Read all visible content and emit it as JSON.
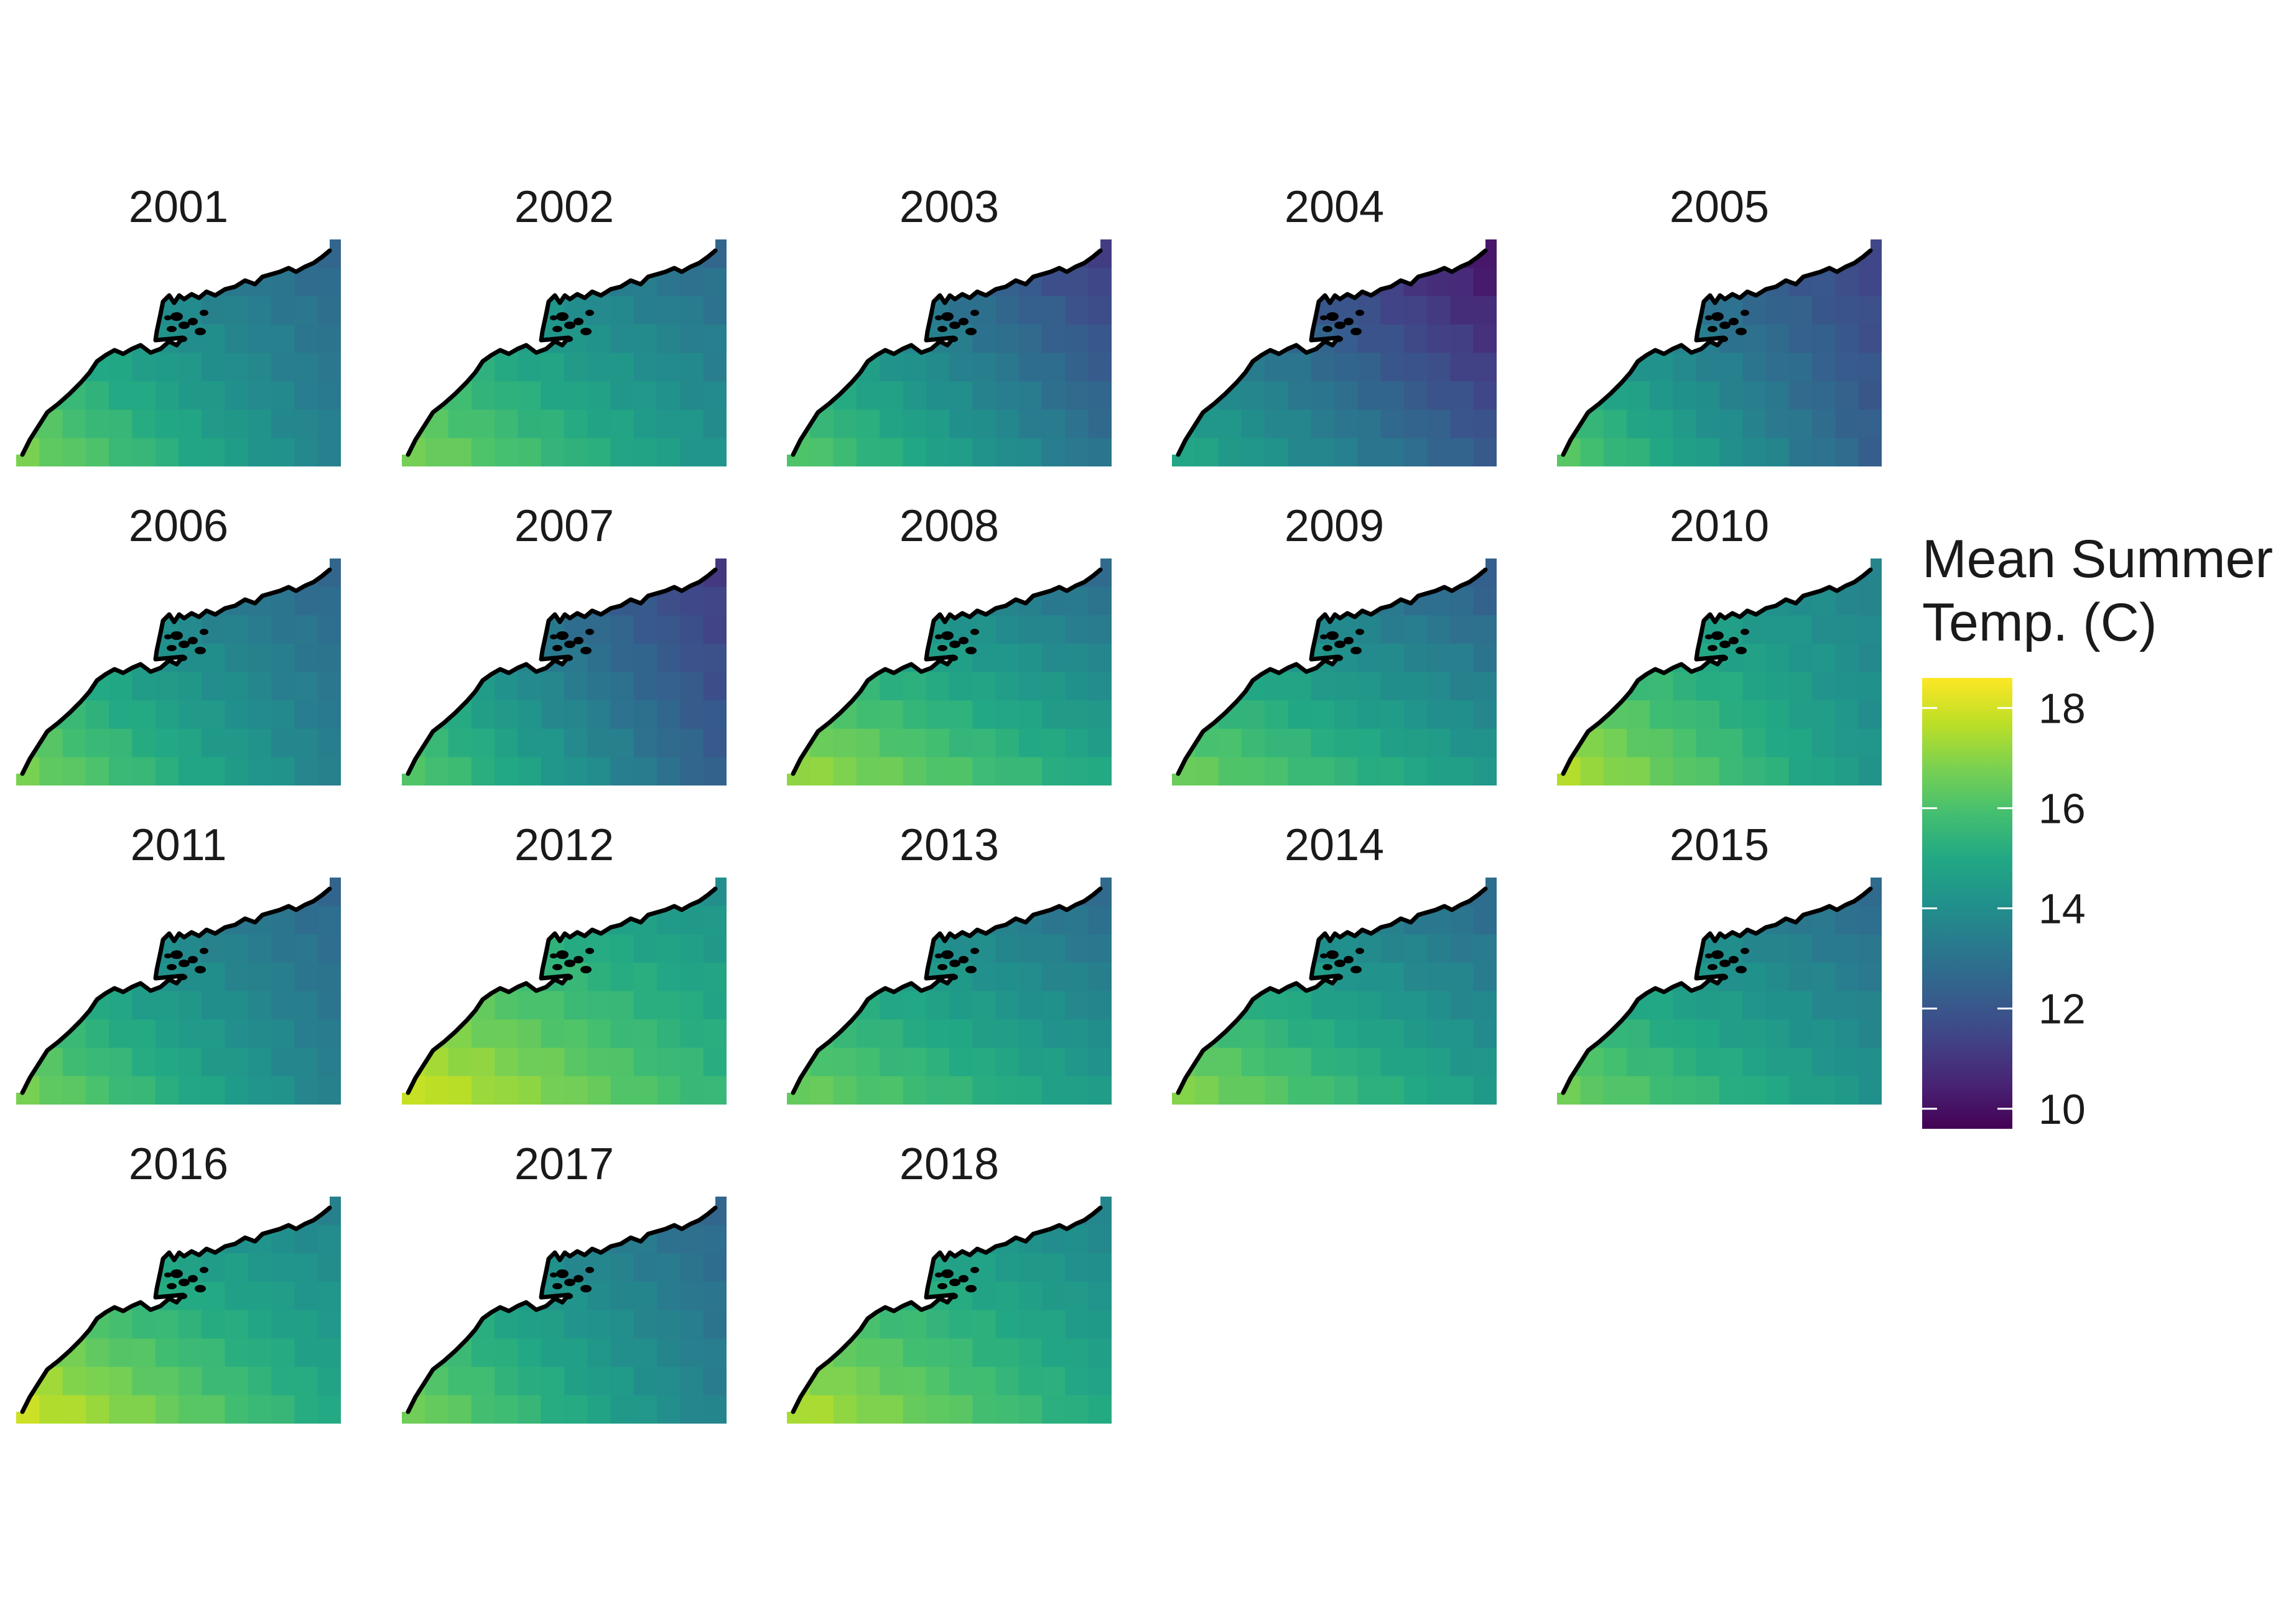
{
  "chart_data": {
    "type": "heatmap",
    "layout": "faceted small-multiples map grid, 5 columns",
    "legend": {
      "title_lines": [
        "Mean Summer",
        "Temp. (C)"
      ],
      "ticks": [
        10,
        12,
        14,
        16,
        18
      ],
      "range": [
        9.6,
        18.6
      ],
      "colormap": "viridis",
      "placement": "right"
    },
    "grid_columns": [
      "west",
      "c2",
      "c3",
      "c4",
      "c5",
      "c6",
      "c7",
      "c8",
      "c9",
      "c10",
      "c11",
      "c12",
      "c13",
      "east"
    ],
    "grid_rows": [
      "north",
      "r2",
      "r3",
      "r4",
      "r5",
      "r6",
      "r7",
      "south"
    ],
    "facets": [
      {
        "year": "2001",
        "corners": [
          14.0,
          12.5,
          17.0,
          13.5
        ]
      },
      {
        "year": "2002",
        "corners": [
          14.3,
          12.5,
          17.0,
          14.2
        ]
      },
      {
        "year": "2003",
        "corners": [
          13.8,
          11.0,
          16.5,
          13.0
        ]
      },
      {
        "year": "2004",
        "corners": [
          12.8,
          9.8,
          15.2,
          12.2
        ]
      },
      {
        "year": "2005",
        "corners": [
          13.3,
          11.3,
          16.5,
          12.3
        ]
      },
      {
        "year": "2006",
        "corners": [
          14.0,
          12.5,
          17.0,
          13.5
        ]
      },
      {
        "year": "2007",
        "corners": [
          13.8,
          11.0,
          16.5,
          12.3
        ]
      },
      {
        "year": "2008",
        "corners": [
          14.2,
          12.5,
          17.5,
          15.0
        ]
      },
      {
        "year": "2009",
        "corners": [
          14.0,
          12.0,
          16.8,
          14.5
        ]
      },
      {
        "year": "2010",
        "corners": [
          14.5,
          13.5,
          17.8,
          14.2
        ]
      },
      {
        "year": "2011",
        "corners": [
          14.0,
          12.5,
          17.0,
          13.5
        ]
      },
      {
        "year": "2012",
        "corners": [
          15.0,
          14.0,
          18.2,
          15.5
        ]
      },
      {
        "year": "2013",
        "corners": [
          14.3,
          12.5,
          16.8,
          14.5
        ]
      },
      {
        "year": "2014",
        "corners": [
          14.0,
          12.5,
          17.2,
          14.5
        ]
      },
      {
        "year": "2015",
        "corners": [
          14.0,
          12.5,
          16.8,
          14.2
        ]
      },
      {
        "year": "2016",
        "corners": [
          14.5,
          13.5,
          18.2,
          15.0
        ]
      },
      {
        "year": "2017",
        "corners": [
          14.2,
          12.5,
          17.0,
          13.5
        ]
      },
      {
        "year": "2018",
        "corners": [
          14.8,
          13.5,
          17.8,
          15.0
        ]
      }
    ],
    "corner_order": [
      "northwest",
      "northeast",
      "southwest",
      "southeast"
    ],
    "title": "",
    "xlabel": "",
    "ylabel": ""
  }
}
